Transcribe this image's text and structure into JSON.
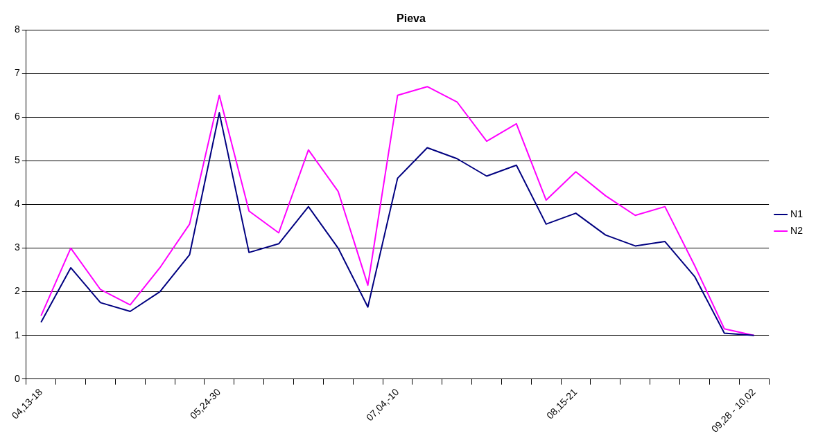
{
  "chart_data": {
    "type": "line",
    "title": "Pieva",
    "categories": [
      "04,13-18",
      null,
      null,
      null,
      null,
      null,
      "05,24-30",
      null,
      null,
      null,
      null,
      null,
      "07,04,-10",
      null,
      null,
      null,
      null,
      null,
      "08,15-21",
      null,
      null,
      null,
      null,
      null,
      "09,28 - 10,02"
    ],
    "series": [
      {
        "name": "N1",
        "color": "#000080",
        "values": [
          1.3,
          2.55,
          1.75,
          1.55,
          2.0,
          2.85,
          6.1,
          2.9,
          3.1,
          3.95,
          3.0,
          1.65,
          4.6,
          5.3,
          5.05,
          4.65,
          4.9,
          3.55,
          3.8,
          3.3,
          3.05,
          3.15,
          2.35,
          1.05,
          1.0
        ]
      },
      {
        "name": "N2",
        "color": "#ff00ff",
        "values": [
          1.45,
          3.0,
          2.05,
          1.7,
          2.55,
          3.55,
          6.5,
          3.85,
          3.35,
          5.25,
          4.3,
          2.15,
          6.5,
          6.7,
          6.35,
          5.45,
          5.85,
          4.1,
          4.75,
          4.2,
          3.75,
          3.95,
          2.6,
          1.15,
          1.0
        ]
      }
    ],
    "ylim": [
      0,
      8
    ],
    "yticks": [
      0,
      1,
      2,
      3,
      4,
      5,
      6,
      7,
      8
    ],
    "grid": "y",
    "legend": "right",
    "marker": "none",
    "line_style": "solid"
  }
}
